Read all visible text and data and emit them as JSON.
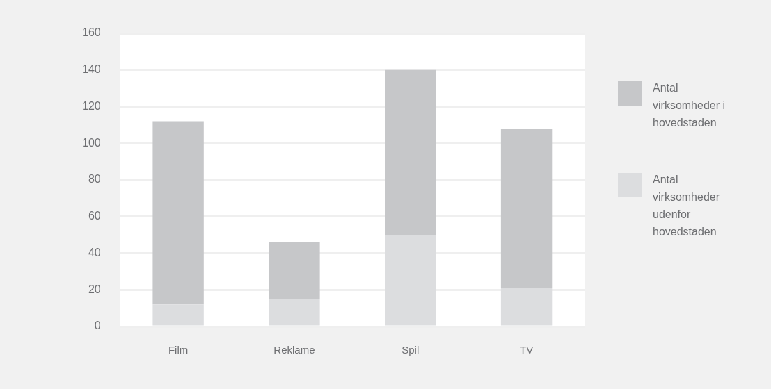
{
  "chart_data": {
    "type": "bar",
    "stacked": true,
    "categories": [
      "Film",
      "Reklame",
      "Spil",
      "TV"
    ],
    "series": [
      {
        "name": "Antal virksomheder udenfor hovedstaden",
        "color": "#dcdddf",
        "values": [
          12,
          15,
          50,
          21
        ]
      },
      {
        "name": "Antal virksomheder i hovedstaden",
        "color": "#c6c7c9",
        "values": [
          100,
          31,
          90,
          87
        ]
      }
    ],
    "ylim": [
      0,
      160
    ],
    "yticks": [
      0,
      20,
      40,
      60,
      80,
      100,
      120,
      140,
      160
    ],
    "grid": "y",
    "legend": "right"
  }
}
